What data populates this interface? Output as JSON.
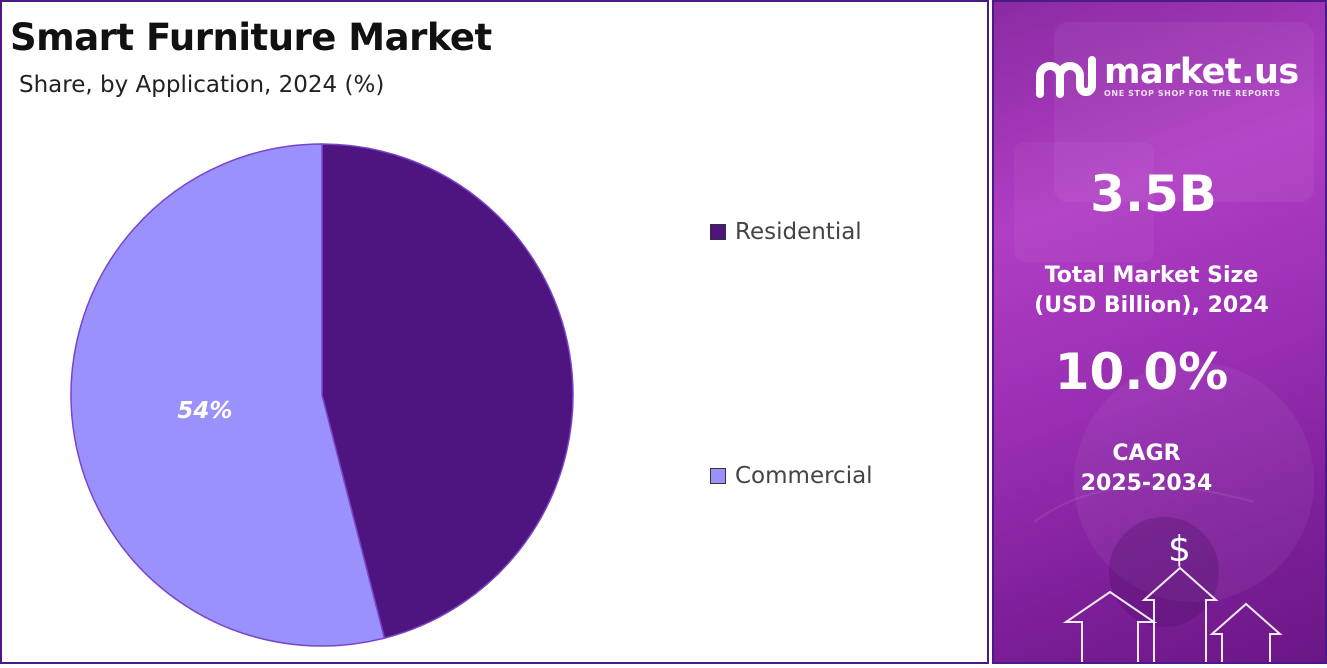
{
  "chart_data": {
    "type": "pie",
    "title": "Smart Furniture Market",
    "subtitle": "Share, by Application, 2024 (%)",
    "slices": [
      {
        "label": "Residential",
        "value": 46,
        "color": "#4e1580",
        "data_label": ""
      },
      {
        "label": "Commercial",
        "value": 54,
        "color": "#9b91fd",
        "data_label": "54%"
      }
    ],
    "legend_position": "right"
  },
  "legend": {
    "residential": {
      "label": "Residential",
      "color": "#4e1580"
    },
    "commercial": {
      "label": "Commercial",
      "color": "#9b91fd"
    }
  },
  "sidebar": {
    "logo_name": "market.us",
    "logo_tagline": "ONE STOP SHOP FOR THE REPORTS",
    "market_size_value": "3.5B",
    "market_size_label_line1": "Total Market Size",
    "market_size_label_line2": "(USD Billion), 2024",
    "cagr_value": "10.0%",
    "cagr_label_line1": "CAGR",
    "cagr_label_line2": "2025-2034",
    "dollar_symbol": "$"
  },
  "colors": {
    "brand_purple": "#4b1a86",
    "sidebar_gradient_mid": "#b03ec4"
  }
}
